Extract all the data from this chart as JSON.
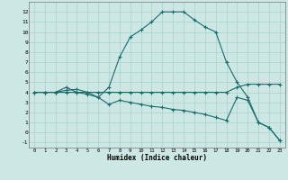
{
  "xlabel": "Humidex (Indice chaleur)",
  "bg_color": "#cde8e4",
  "line_color": "#1a6b6b",
  "grid_color": "#aed4ce",
  "xlim": [
    -0.5,
    23.5
  ],
  "ylim": [
    -1.5,
    13
  ],
  "xticks": [
    0,
    1,
    2,
    3,
    4,
    5,
    6,
    7,
    8,
    9,
    10,
    11,
    12,
    13,
    14,
    15,
    16,
    17,
    18,
    19,
    20,
    21,
    22,
    23
  ],
  "yticks": [
    -1,
    0,
    1,
    2,
    3,
    4,
    5,
    6,
    7,
    8,
    9,
    10,
    11,
    12
  ],
  "line1_x": [
    0,
    1,
    2,
    3,
    4,
    5,
    6,
    7,
    8,
    9,
    10,
    11,
    12,
    13,
    14,
    15,
    16,
    17,
    18,
    19,
    20,
    21,
    22,
    23
  ],
  "line1_y": [
    4,
    4,
    4,
    4.5,
    4,
    4,
    3.5,
    4.5,
    7.5,
    9.5,
    10.2,
    11,
    12,
    12,
    12,
    11.2,
    10.5,
    10,
    7,
    5,
    3.5,
    1,
    0.5,
    -0.8
  ],
  "line2_x": [
    0,
    1,
    2,
    3,
    4,
    5,
    6,
    7,
    8,
    9,
    10,
    11,
    12,
    13,
    14,
    15,
    16,
    17,
    18,
    19,
    20,
    21,
    22,
    23
  ],
  "line2_y": [
    4,
    4,
    4,
    4.2,
    4.3,
    4,
    4,
    4,
    4,
    4,
    4,
    4,
    4,
    4,
    4,
    4,
    4,
    4,
    4,
    4.5,
    4.8,
    4.8,
    4.8,
    4.8
  ],
  "line3_x": [
    0,
    1,
    2,
    3,
    4,
    5,
    6,
    7,
    8,
    9,
    10,
    11,
    12,
    13,
    14,
    15,
    16,
    17,
    18,
    19,
    20,
    21,
    22,
    23
  ],
  "line3_y": [
    4,
    4,
    4,
    4,
    4,
    3.8,
    3.5,
    2.8,
    3.2,
    3.0,
    2.8,
    2.6,
    2.5,
    2.3,
    2.2,
    2.0,
    1.8,
    1.5,
    1.2,
    3.5,
    3.2,
    1,
    0.5,
    -0.8
  ]
}
